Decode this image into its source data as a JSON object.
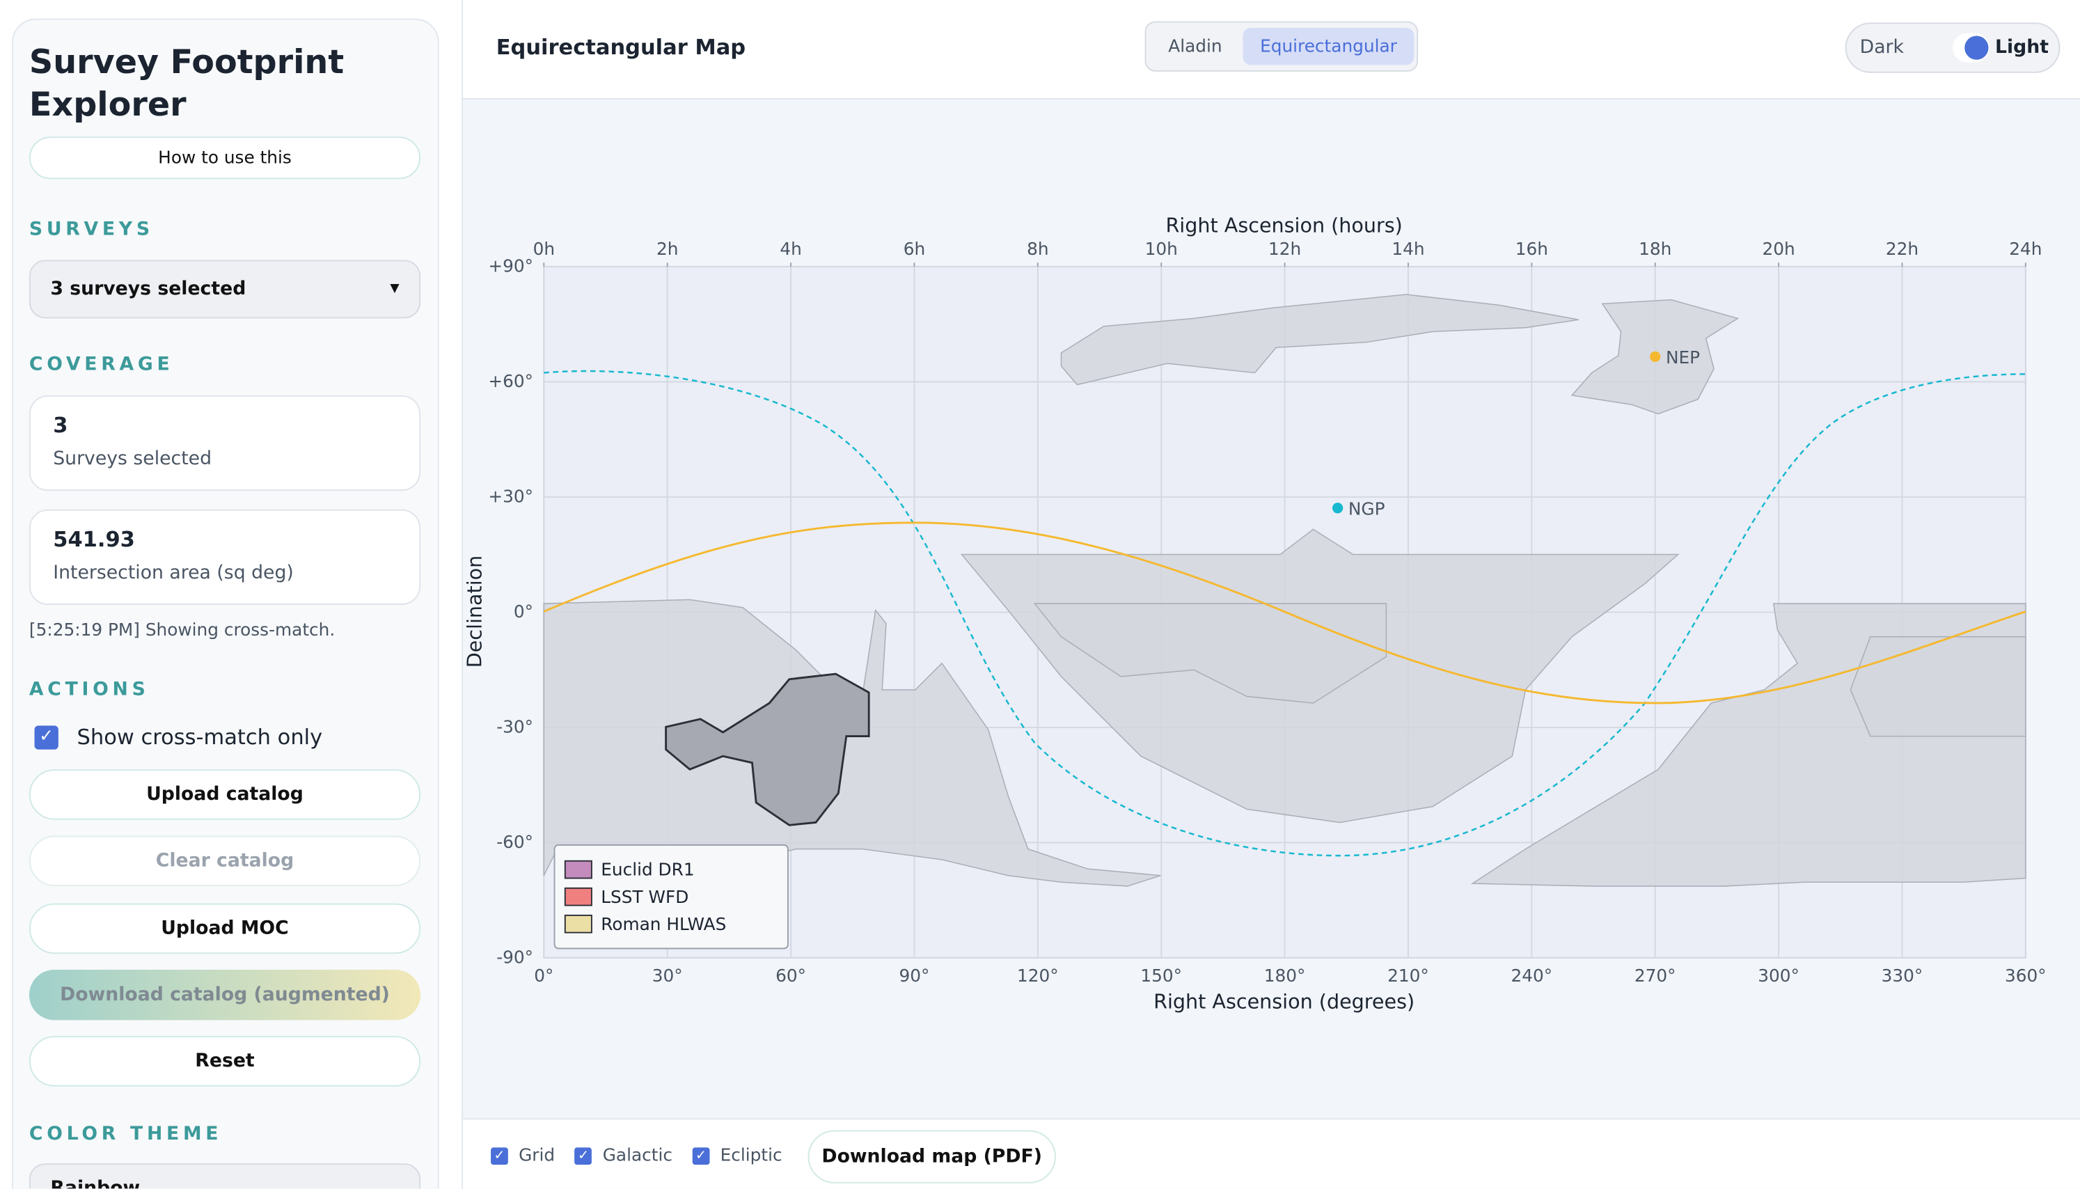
{
  "sidebar": {
    "title": "Survey Footprint Explorer",
    "help_button": "How to use this",
    "surveys_heading": "SURVEYS",
    "survey_select": "3 surveys selected",
    "coverage_heading": "COVERAGE",
    "stats": [
      {
        "value": "3",
        "label": "Surveys selected"
      },
      {
        "value": "541.93",
        "label": "Intersection area (sq deg)"
      }
    ],
    "status": "[5:25:19 PM] Showing cross-match.",
    "actions_heading": "ACTIONS",
    "checkbox": "Show cross-match only",
    "buttons": [
      "Upload catalog",
      "Clear catalog",
      "Upload MOC",
      "Download catalog (augmented)",
      "Reset"
    ],
    "color_theme_heading": "COLOR THEME",
    "theme_select": "Rainbow"
  },
  "header": {
    "title": "Equirectangular Map",
    "tabs": [
      "Aladin",
      "Equirectangular"
    ],
    "toggle": [
      "Dark",
      "Light"
    ]
  },
  "chart_data": {
    "type": "map",
    "x2_label": "Right Ascension (hours)",
    "x_label": "Right Ascension (degrees)",
    "y_label": "Declination",
    "xlim": [
      0,
      360
    ],
    "ylim": [
      -90,
      90
    ],
    "xticks": [
      {
        "value": 0,
        "label": "0°"
      },
      {
        "value": 30,
        "label": "30°"
      },
      {
        "value": 60,
        "label": "60°"
      },
      {
        "value": 90,
        "label": "90°"
      },
      {
        "value": 120,
        "label": "120°"
      },
      {
        "value": 150,
        "label": "150°"
      },
      {
        "value": 180,
        "label": "180°"
      },
      {
        "value": 210,
        "label": "210°"
      },
      {
        "value": 240,
        "label": "240°"
      },
      {
        "value": 270,
        "label": "270°"
      },
      {
        "value": 300,
        "label": "300°"
      },
      {
        "value": 330,
        "label": "330°"
      },
      {
        "value": 360,
        "label": "360°"
      }
    ],
    "x2ticks": [
      {
        "value": 0,
        "label": "0h"
      },
      {
        "value": 30,
        "label": "2h"
      },
      {
        "value": 60,
        "label": "4h"
      },
      {
        "value": 90,
        "label": "6h"
      },
      {
        "value": 120,
        "label": "8h"
      },
      {
        "value": 150,
        "label": "10h"
      },
      {
        "value": 180,
        "label": "12h"
      },
      {
        "value": 210,
        "label": "14h"
      },
      {
        "value": 240,
        "label": "16h"
      },
      {
        "value": 270,
        "label": "18h"
      },
      {
        "value": 300,
        "label": "20h"
      },
      {
        "value": 330,
        "label": "22h"
      },
      {
        "value": 360,
        "label": "24h"
      }
    ],
    "yticks": [
      {
        "value": 90,
        "label": "+90°"
      },
      {
        "value": 60,
        "label": "+60°"
      },
      {
        "value": 30,
        "label": "+30°"
      },
      {
        "value": 0,
        "label": "0°"
      },
      {
        "value": -30,
        "label": "-30°"
      },
      {
        "value": -60,
        "label": "-60°"
      },
      {
        "value": -90,
        "label": "-90°"
      }
    ],
    "grid": true,
    "legend": [
      {
        "name": "Euclid DR1",
        "color": "#c48bbd"
      },
      {
        "name": "LSST WFD",
        "color": "#f08080"
      },
      {
        "name": "Roman HLWAS",
        "color": "#ecdfa6"
      }
    ],
    "points": [
      {
        "label": "NEP",
        "ra": 270,
        "dec": 66.56,
        "color": "#f5b82e"
      },
      {
        "label": "NGP",
        "ra": 192.86,
        "dec": 27.13,
        "color": "#17b8d0"
      }
    ]
  },
  "footer": {
    "checkboxes": [
      "Grid",
      "Galactic",
      "Ecliptic"
    ],
    "button": "Download map (PDF)"
  }
}
